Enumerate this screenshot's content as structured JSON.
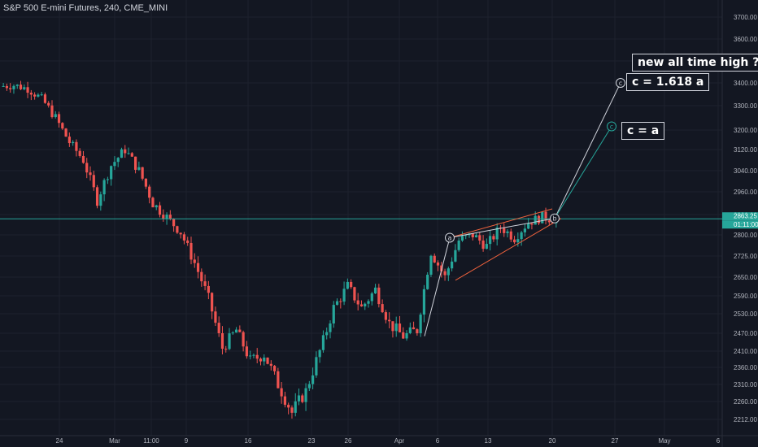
{
  "header": {
    "title": "S&P 500 E-mini Futures, 240, CME_MINI"
  },
  "colors": {
    "background": "#131722",
    "grid": "#1e222d",
    "up": "#26a69a",
    "down": "#ef5350",
    "price_line": "#26a69a",
    "axis_text": "#b2b5be",
    "channel": "#f0623d"
  },
  "chart_data": {
    "type": "candlestick",
    "title": "S&P 500 E-mini Futures, 240, CME_MINI",
    "y_ticks": [
      2212,
      2260,
      2310,
      2360,
      2410,
      2470,
      2530,
      2590,
      2650,
      2725,
      2800,
      2880,
      2960,
      3040,
      3120,
      3200,
      3300,
      3400,
      3500,
      3600,
      3700
    ],
    "y_tick_labels": [
      "2212.00",
      "2260.00",
      "2310.00",
      "2360.00",
      "2410.00",
      "2470.00",
      "2530.00",
      "2590.00",
      "2650.00",
      "2725.00",
      "2800.00",
      "2880.00",
      "2960.00",
      "3040.00",
      "3120.00",
      "3200.00",
      "3300.00",
      "3400.00",
      "3500.00",
      "3600.00",
      "3700.00"
    ],
    "x_labels": [
      "24",
      "Mar",
      "11:00",
      "9",
      "16",
      "23",
      "26",
      "Apr",
      "6",
      "13",
      "20",
      "27",
      "May",
      "6"
    ],
    "current_price": "2863.25",
    "countdown": "01:11:00",
    "price_path": [
      3385,
      3390,
      3375,
      3330,
      3250,
      3150,
      3080,
      2930,
      3060,
      3120,
      3040,
      2920,
      2870,
      2810,
      2700,
      2580,
      2420,
      2480,
      2380,
      2400,
      2310,
      2230,
      2290,
      2410,
      2550,
      2620,
      2550,
      2610,
      2500,
      2460,
      2480,
      2740,
      2650,
      2780,
      2800,
      2760,
      2830,
      2790,
      2850,
      2870,
      2860
    ],
    "wave_labels": [
      "a",
      "b",
      "c",
      "c"
    ],
    "annotations": [
      "new all time high ??",
      "c = 1.618 a",
      "c = a"
    ]
  }
}
